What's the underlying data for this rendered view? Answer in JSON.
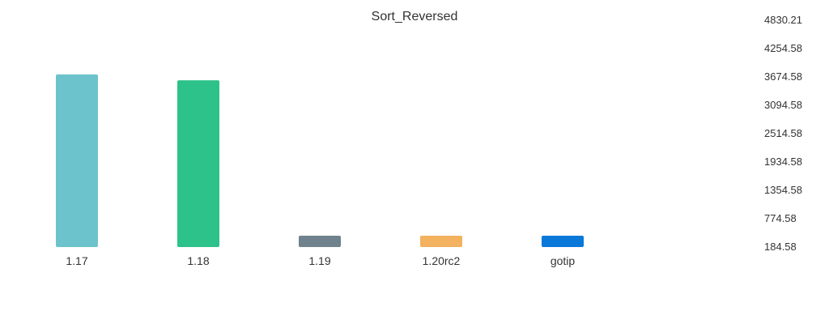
{
  "chart_data": {
    "type": "bar",
    "title": "Sort_Reversed",
    "xlabel": "",
    "ylabel": "",
    "categories": [
      "1.17",
      "1.18",
      "1.19",
      "1.20rc2",
      "gotip"
    ],
    "values": [
      3720,
      3600,
      215,
      215,
      215
    ],
    "colors": [
      "#6cc3cc",
      "#2cc28a",
      "#6f828d",
      "#f2b25f",
      "#0a78d9"
    ],
    "y_ticks": [
      "4830.21",
      "4254.58",
      "3674.58",
      "3094.58",
      "2514.58",
      "1934.58",
      "1354.58",
      "774.58",
      "184.58"
    ],
    "ylim": [
      184.58,
      4830.21
    ],
    "y_axis_position": "right",
    "grid": false,
    "legend": "none"
  }
}
